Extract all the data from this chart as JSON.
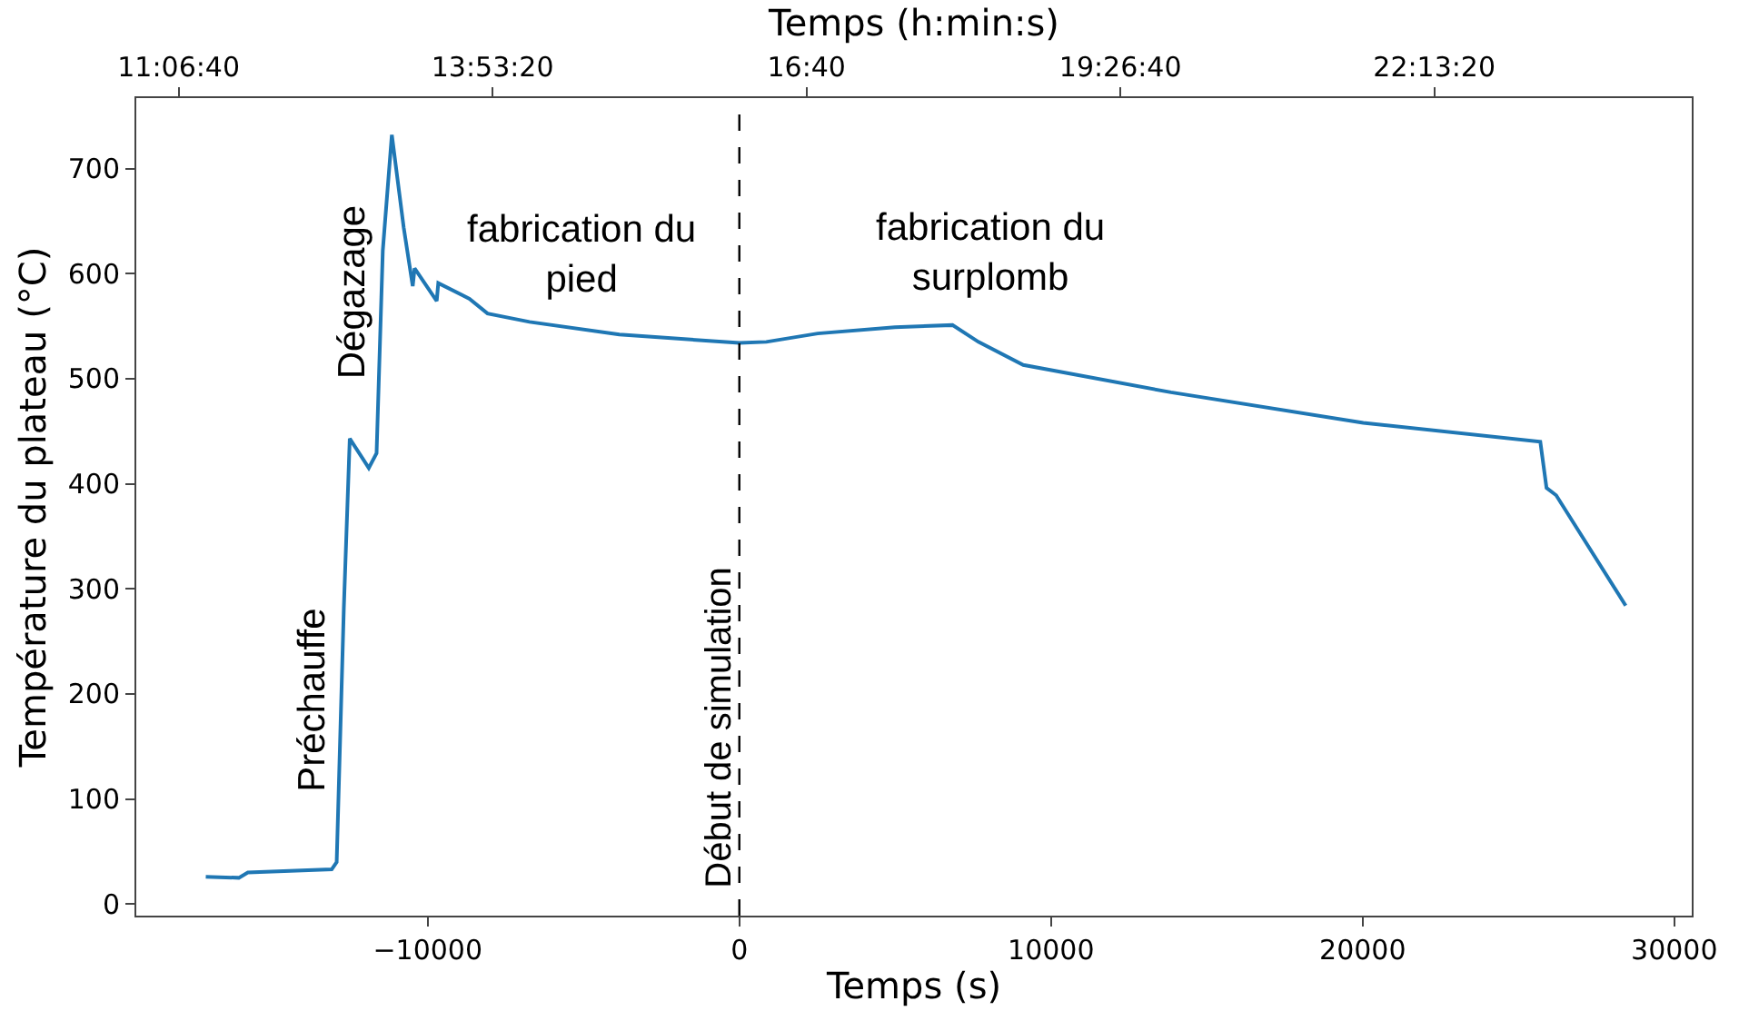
{
  "chart_data": {
    "type": "line",
    "xlabel": "Temps (s)",
    "ylabel": "Température du plateau (°C)",
    "x2label": "Temps (h:min:s)",
    "x": [
      -17120,
      -16060,
      -15770,
      -13080,
      -12920,
      -12690,
      -12500,
      -11890,
      -11640,
      -11440,
      -11150,
      -10770,
      -10480,
      -10420,
      -9710,
      -9660,
      -8660,
      -8080,
      -6730,
      -3850,
      0,
      866,
      2515,
      4990,
      6840,
      7670,
      9110,
      13850,
      20020,
      25700,
      25900,
      26210,
      28440
    ],
    "series": [
      {
        "color": "#1f77b4",
        "values": [
          26,
          25,
          30,
          33,
          40,
          282,
          443,
          415,
          429,
          622,
          732,
          644,
          588,
          605,
          574,
          591,
          576,
          562,
          554,
          542,
          534,
          535,
          543,
          549,
          551,
          535,
          513,
          487,
          458,
          440,
          396,
          389,
          284
        ]
      }
    ],
    "xlim": [
      -19350,
      30560
    ],
    "ylim": [
      -11,
      767
    ],
    "xticks": [
      {
        "value": -10000,
        "label": "−10000"
      },
      0,
      10000,
      20000,
      30000
    ],
    "yticks": [
      0,
      100,
      200,
      300,
      400,
      500,
      600,
      700
    ],
    "x2lim": [
      10.736,
      24.5
    ],
    "x2ticks": [
      {
        "value": 11.1111,
        "label": "11:06:40"
      },
      {
        "value": 13.8889,
        "label": "13:53:20"
      },
      {
        "value": 16.6667,
        "label": "16:40"
      },
      {
        "value": 19.4444,
        "label": "19:26:40"
      },
      {
        "value": 22.2222,
        "label": "22:13:20"
      }
    ],
    "ref_lines": [
      {
        "axis": "x",
        "value": 0,
        "label": "Début de simulation",
        "color": "#000000",
        "line_style": "dashed"
      }
    ],
    "annotations": [
      "Préchauffe",
      "Dégazage",
      "fabrication du\npied",
      "fabrication du\nsurplomb"
    ],
    "marker": "none",
    "line_style": "solid"
  }
}
